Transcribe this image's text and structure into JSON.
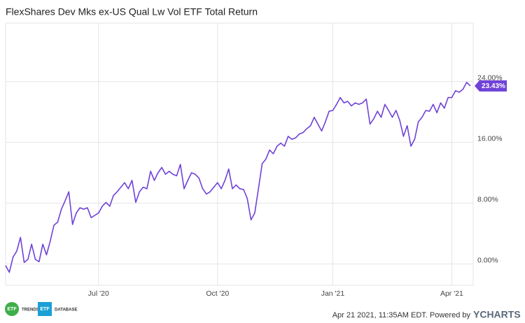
{
  "chart_data": {
    "type": "line",
    "title": "FlexShares Dev Mks ex-US Qual Lw Vol ETF Total Return",
    "color": "#6f42d8",
    "grid": true,
    "yaxis_side": "right",
    "ylim": [
      -2.8,
      31.7
    ],
    "yticks": [
      {
        "value": 0,
        "label": "0.00%"
      },
      {
        "value": 8,
        "label": "8.00%"
      },
      {
        "value": 16,
        "label": "16.00%"
      },
      {
        "value": 24,
        "label": "24.00%"
      }
    ],
    "categories": [
      null,
      null,
      null,
      null,
      null,
      null,
      null,
      null,
      null,
      null,
      null,
      null,
      null,
      null,
      null,
      null,
      null,
      null,
      null,
      null,
      null,
      null,
      null,
      null,
      null,
      "Jul '20",
      null,
      null,
      null,
      null,
      null,
      null,
      null,
      null,
      null,
      null,
      null,
      null,
      null,
      null,
      null,
      null,
      null,
      null,
      null,
      null,
      null,
      null,
      null,
      null,
      null,
      null,
      null,
      null,
      null,
      null,
      null,
      "Oct '20",
      null,
      null,
      null,
      null,
      null,
      null,
      null,
      null,
      null,
      null,
      null,
      null,
      null,
      null,
      null,
      null,
      null,
      null,
      null,
      null,
      null,
      null,
      null,
      null,
      null,
      null,
      null,
      null,
      null,
      null,
      "Jan '21",
      null,
      null,
      null,
      null,
      null,
      null,
      null,
      null,
      null,
      null,
      null,
      null,
      null,
      null,
      null,
      null,
      null,
      null,
      null,
      null,
      null,
      null,
      null,
      null,
      null,
      null,
      null,
      null,
      null,
      null,
      null,
      "Apr '21",
      null,
      null,
      null,
      null,
      null
    ],
    "values": [
      -0.2,
      -1.1,
      0.9,
      1.7,
      3.5,
      0.2,
      0.6,
      2.6,
      0.6,
      0.3,
      2.6,
      1.2,
      3.0,
      5.1,
      5.5,
      7.2,
      8.3,
      9.5,
      5.2,
      6.7,
      7.4,
      7.2,
      7.4,
      6.1,
      6.4,
      6.7,
      7.6,
      8.1,
      7.6,
      9.0,
      9.5,
      10.1,
      10.7,
      9.9,
      11.0,
      8.1,
      9.5,
      10.1,
      9.9,
      12.2,
      11.0,
      12.0,
      12.7,
      11.8,
      12.2,
      11.8,
      11.6,
      13.1,
      9.9,
      11.0,
      12.0,
      11.8,
      11.3,
      9.9,
      9.2,
      9.5,
      10.1,
      10.7,
      9.9,
      11.0,
      12.5,
      9.9,
      10.4,
      9.9,
      9.8,
      8.6,
      5.8,
      6.7,
      9.9,
      13.2,
      13.8,
      15.0,
      14.5,
      15.5,
      15.9,
      15.5,
      16.8,
      16.4,
      16.6,
      17.1,
      17.3,
      17.8,
      18.2,
      19.3,
      18.4,
      17.5,
      18.7,
      20.1,
      20.2,
      21.0,
      21.9,
      21.2,
      21.4,
      20.8,
      21.2,
      21.0,
      21.2,
      21.7,
      18.4,
      19.1,
      20.1,
      19.3,
      21.0,
      20.2,
      19.3,
      20.2,
      18.9,
      16.8,
      18.2,
      15.5,
      16.4,
      18.7,
      19.3,
      20.2,
      20.1,
      21.0,
      19.9,
      21.2,
      20.5,
      21.9,
      21.9,
      22.8,
      22.6,
      23.0,
      23.9,
      23.43
    ],
    "value_labels": [
      null,
      null,
      null,
      null,
      null,
      null,
      null,
      null,
      null,
      null,
      null,
      null,
      null,
      null,
      null,
      null,
      null,
      null,
      null,
      null,
      null,
      null,
      null,
      null,
      null,
      null,
      null,
      null,
      null,
      null,
      null,
      null,
      null,
      null,
      null,
      null,
      null,
      null,
      null,
      null,
      null,
      null,
      null,
      null,
      null,
      null,
      null,
      null,
      null,
      null,
      null,
      null,
      null,
      null,
      null,
      null,
      null,
      null,
      null,
      null,
      null,
      null,
      null,
      null,
      null,
      null,
      null,
      null,
      null,
      null,
      null,
      null,
      null,
      null,
      null,
      null,
      null,
      null,
      null,
      null,
      null,
      null,
      null,
      null,
      null,
      null,
      null,
      null,
      null,
      null,
      null,
      null,
      null,
      null,
      null,
      null,
      null,
      null,
      null,
      null,
      null,
      null,
      null,
      null,
      null,
      null,
      null,
      null,
      null,
      null,
      null,
      null,
      null,
      null,
      null,
      null,
      null,
      null,
      null,
      null,
      null,
      null,
      null,
      null,
      null,
      "23.43%"
    ]
  },
  "footer": {
    "logos": [
      {
        "badge": "ETF",
        "text": "TRENDS"
      },
      {
        "badge": "ETF",
        "text": "DATABASE"
      }
    ],
    "timestamp": "Apr 21 2021, 11:35AM EDT. Powered by",
    "brand": "YCHARTS"
  }
}
